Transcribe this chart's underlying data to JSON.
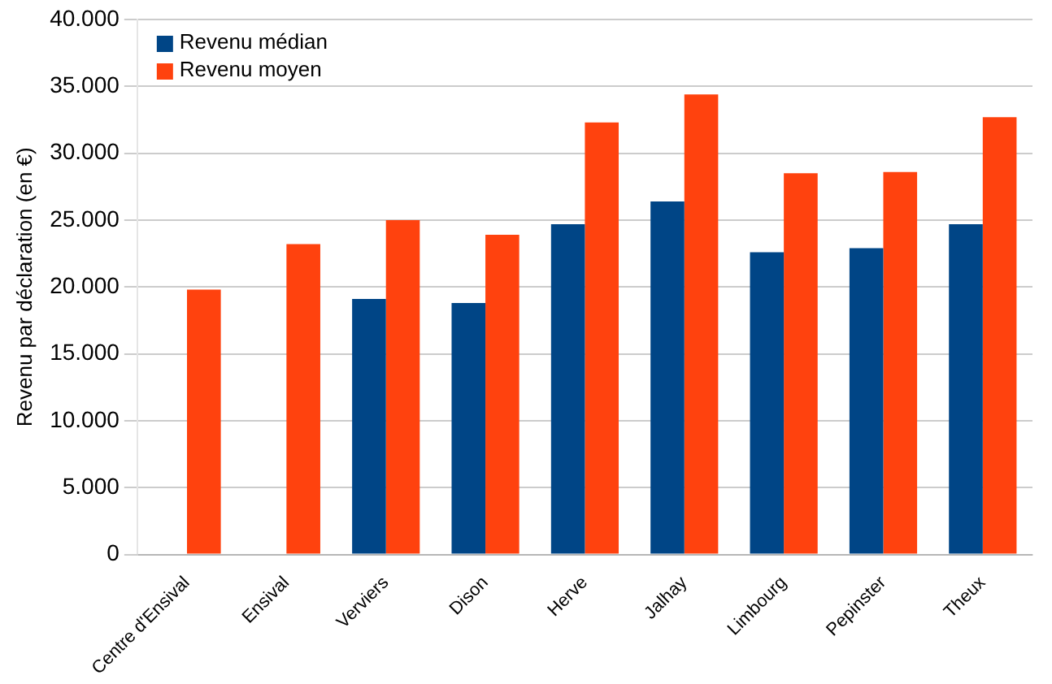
{
  "chart_data": {
    "type": "bar",
    "ylabel": "Revenu par déclaration (en €)",
    "categories": [
      "Centre d'Ensival",
      "Ensival",
      "Verviers",
      "Dison",
      "Herve",
      "Jalhay",
      "Limbourg",
      "Pepinster",
      "Theux"
    ],
    "series": [
      {
        "name": "Revenu médian",
        "color": "#004586",
        "values": [
          null,
          null,
          19100,
          18800,
          24700,
          26400,
          22600,
          22900,
          24700
        ]
      },
      {
        "name": "Revenu moyen",
        "color": "#ff420e",
        "values": [
          19800,
          23200,
          25000,
          23900,
          32300,
          34400,
          28500,
          28600,
          32700
        ]
      }
    ],
    "ylim": [
      0,
      40000
    ],
    "yticks": [
      {
        "value": 0,
        "label": "0"
      },
      {
        "value": 5000,
        "label": "5.000"
      },
      {
        "value": 10000,
        "label": "10.000"
      },
      {
        "value": 15000,
        "label": "15.000"
      },
      {
        "value": 20000,
        "label": "20.000"
      },
      {
        "value": 25000,
        "label": "25.000"
      },
      {
        "value": 30000,
        "label": "30.000"
      },
      {
        "value": 35000,
        "label": "35.000"
      },
      {
        "value": 40000,
        "label": "40.000"
      }
    ],
    "grid": "y",
    "legend": "top left"
  }
}
